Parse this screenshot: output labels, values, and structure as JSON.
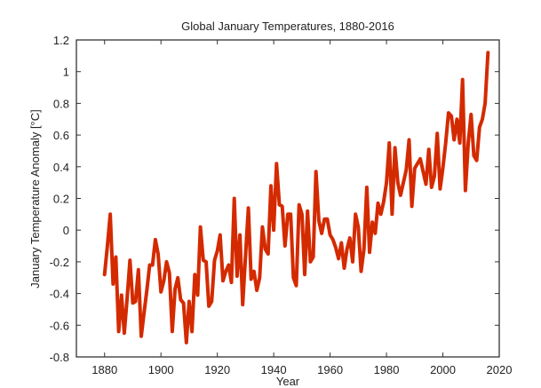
{
  "chart_data": {
    "type": "line",
    "title": "Global January Temperatures, 1880-2016",
    "xlabel": "Year",
    "ylabel": "January Temperature Anomaly [°C]",
    "xlim": [
      1870,
      2020
    ],
    "ylim": [
      -0.8,
      1.2
    ],
    "xticks": [
      1880,
      1900,
      1920,
      1940,
      1960,
      1980,
      2000,
      2020
    ],
    "xtick_labels": [
      "1880",
      "1900",
      "1920",
      "1940",
      "1960",
      "1980",
      "2000",
      "2020"
    ],
    "yticks": [
      -0.8,
      -0.6,
      -0.4,
      -0.2,
      0,
      0.2,
      0.4,
      0.6,
      0.8,
      1,
      1.2
    ],
    "ytick_labels": [
      "-0.8",
      "-0.6",
      "-0.4",
      "-0.2",
      "0",
      "0.2",
      "0.4",
      "0.6",
      "0.8",
      "1",
      "1.2"
    ],
    "grid": false,
    "line_color": "#d42a00",
    "x_start": 1880,
    "values": [
      -0.28,
      -0.1,
      0.1,
      -0.34,
      -0.17,
      -0.64,
      -0.41,
      -0.65,
      -0.43,
      -0.19,
      -0.46,
      -0.45,
      -0.25,
      -0.67,
      -0.52,
      -0.38,
      -0.22,
      -0.22,
      -0.06,
      -0.15,
      -0.39,
      -0.32,
      -0.2,
      -0.27,
      -0.64,
      -0.37,
      -0.3,
      -0.44,
      -0.46,
      -0.71,
      -0.45,
      -0.64,
      -0.28,
      -0.41,
      0.02,
      -0.19,
      -0.2,
      -0.48,
      -0.45,
      -0.19,
      -0.13,
      -0.03,
      -0.32,
      -0.26,
      -0.22,
      -0.33,
      0.2,
      -0.29,
      -0.03,
      -0.47,
      -0.16,
      0.14,
      -0.31,
      -0.26,
      -0.38,
      -0.3,
      0.02,
      -0.12,
      -0.15,
      0.28,
      0.0,
      0.42,
      0.16,
      0.15,
      -0.1,
      0.1,
      0.1,
      -0.3,
      -0.35,
      0.16,
      0.1,
      -0.28,
      0.12,
      -0.2,
      -0.17,
      0.37,
      0.06,
      -0.02,
      0.07,
      0.07,
      -0.03,
      -0.06,
      -0.11,
      -0.18,
      -0.08,
      -0.24,
      -0.12,
      -0.05,
      -0.2,
      0.1,
      0.02,
      -0.26,
      -0.12,
      0.27,
      -0.14,
      0.05,
      -0.02,
      0.17,
      0.1,
      0.18,
      0.3,
      0.55,
      0.1,
      0.52,
      0.3,
      0.22,
      0.3,
      0.38,
      0.57,
      0.15,
      0.39,
      0.42,
      0.45,
      0.37,
      0.29,
      0.51,
      0.27,
      0.34,
      0.61,
      0.26,
      0.39,
      0.55,
      0.74,
      0.72,
      0.57,
      0.7,
      0.55,
      0.95,
      0.25,
      0.55,
      0.73,
      0.47,
      0.44,
      0.65,
      0.7,
      0.8,
      1.12
    ]
  }
}
